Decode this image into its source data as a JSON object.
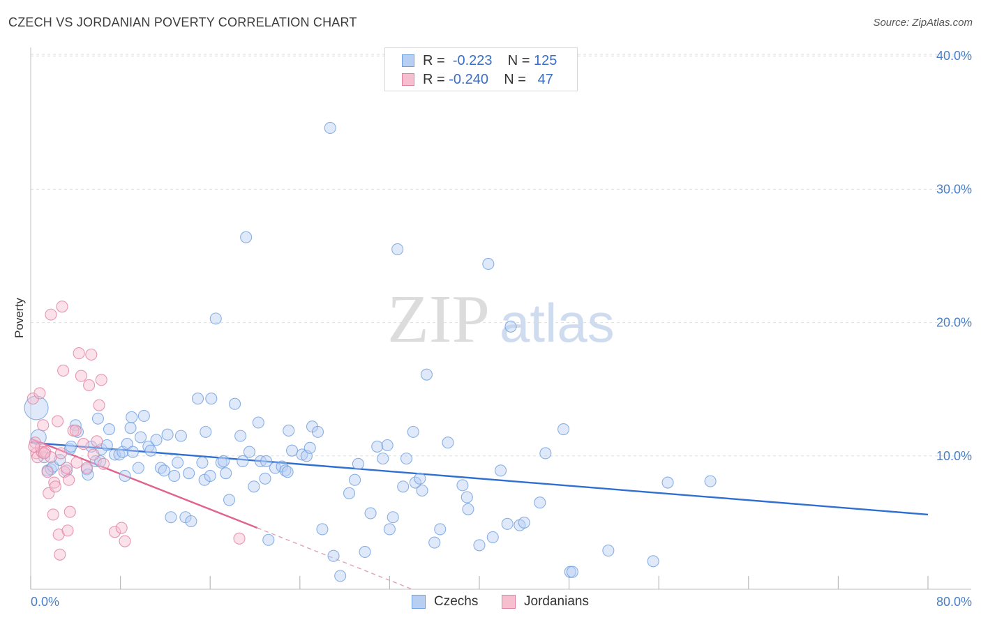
{
  "title": "CZECH VS JORDANIAN POVERTY CORRELATION CHART",
  "source": "Source: ZipAtlas.com",
  "watermark": {
    "zip": "ZIP",
    "atlas": "atlas"
  },
  "legend": {
    "rows": [
      {
        "r_label": "R =",
        "r_value": "-0.223",
        "n_label": "N =",
        "n_value": "125",
        "color": "#6e9fe0",
        "fill": "#b7cff3"
      },
      {
        "r_label": "R =",
        "r_value": "-0.240",
        "n_label": "N =",
        "n_value": " 47",
        "color": "#e07fa0",
        "fill": "#f6bfd0"
      }
    ]
  },
  "bottom_legend": [
    {
      "label": "Czechs",
      "color": "#6e9fe0",
      "fill": "#b7cff3"
    },
    {
      "label": "Jordanians",
      "color": "#e07fa0",
      "fill": "#f6bfd0"
    }
  ],
  "chart_data": {
    "type": "scatter",
    "title": "CZECH VS JORDANIAN POVERTY CORRELATION CHART",
    "xlabel": "",
    "ylabel": "Poverty",
    "xlim": [
      0,
      80
    ],
    "ylim": [
      0,
      41
    ],
    "x_tick_labels": [
      "0.0%",
      "80.0%"
    ],
    "y_ticks": [
      10,
      20,
      30,
      40
    ],
    "y_tick_labels": [
      "10.0%",
      "20.0%",
      "30.0%",
      "40.0%"
    ],
    "grid": true,
    "series": [
      {
        "name": "Czechs",
        "color": "#6e9fe0",
        "fill": "#b7cff3",
        "trend": {
          "x": [
            0,
            80
          ],
          "y": [
            11.0,
            5.6
          ]
        },
        "points": [
          [
            0.5,
            13.6
          ],
          [
            0.7,
            11.4
          ],
          [
            1.2,
            9.9
          ],
          [
            1.5,
            8.9
          ],
          [
            1.8,
            9.0
          ],
          [
            2.0,
            9.2
          ],
          [
            2.6,
            9.7
          ],
          [
            3.2,
            8.9
          ],
          [
            3.5,
            10.5
          ],
          [
            3.6,
            10.7
          ],
          [
            4.0,
            12.3
          ],
          [
            4.2,
            11.8
          ],
          [
            5.0,
            9.0
          ],
          [
            5.1,
            8.6
          ],
          [
            5.4,
            10.7
          ],
          [
            5.8,
            9.6
          ],
          [
            6.2,
            9.6
          ],
          [
            6.3,
            10.5
          ],
          [
            6.8,
            10.8
          ],
          [
            7.0,
            12.0
          ],
          [
            7.5,
            10.1
          ],
          [
            7.9,
            10.1
          ],
          [
            8.2,
            10.3
          ],
          [
            8.4,
            8.5
          ],
          [
            8.6,
            10.9
          ],
          [
            8.9,
            12.1
          ],
          [
            9.0,
            12.9
          ],
          [
            9.6,
            9.1
          ],
          [
            9.8,
            11.4
          ],
          [
            10.1,
            13.0
          ],
          [
            10.5,
            10.7
          ],
          [
            10.7,
            10.4
          ],
          [
            11.2,
            11.2
          ],
          [
            11.6,
            9.1
          ],
          [
            11.9,
            8.9
          ],
          [
            12.2,
            11.6
          ],
          [
            12.5,
            5.4
          ],
          [
            12.8,
            8.5
          ],
          [
            13.1,
            9.5
          ],
          [
            13.4,
            11.5
          ],
          [
            13.8,
            5.4
          ],
          [
            14.1,
            8.7
          ],
          [
            14.3,
            5.1
          ],
          [
            14.9,
            14.3
          ],
          [
            15.3,
            9.5
          ],
          [
            15.5,
            8.2
          ],
          [
            15.6,
            11.8
          ],
          [
            16.0,
            8.5
          ],
          [
            16.1,
            14.3
          ],
          [
            16.5,
            20.3
          ],
          [
            17.0,
            9.5
          ],
          [
            17.4,
            8.7
          ],
          [
            17.7,
            6.7
          ],
          [
            18.2,
            13.9
          ],
          [
            18.7,
            11.5
          ],
          [
            18.9,
            9.6
          ],
          [
            19.2,
            26.4
          ],
          [
            19.5,
            10.3
          ],
          [
            19.9,
            7.7
          ],
          [
            20.3,
            12.5
          ],
          [
            20.5,
            9.6
          ],
          [
            20.9,
            8.3
          ],
          [
            21.2,
            3.7
          ],
          [
            21.8,
            9.1
          ],
          [
            22.4,
            9.2
          ],
          [
            22.7,
            8.9
          ],
          [
            22.9,
            8.8
          ],
          [
            23.0,
            11.9
          ],
          [
            23.3,
            10.4
          ],
          [
            24.2,
            10.1
          ],
          [
            24.6,
            10.0
          ],
          [
            24.9,
            10.6
          ],
          [
            25.1,
            12.2
          ],
          [
            25.6,
            11.8
          ],
          [
            26.0,
            4.5
          ],
          [
            26.7,
            34.6
          ],
          [
            27.0,
            2.5
          ],
          [
            27.6,
            1.0
          ],
          [
            28.4,
            7.2
          ],
          [
            28.9,
            8.2
          ],
          [
            29.2,
            9.4
          ],
          [
            29.8,
            2.8
          ],
          [
            30.3,
            5.7
          ],
          [
            30.9,
            10.7
          ],
          [
            31.4,
            9.8
          ],
          [
            31.8,
            10.8
          ],
          [
            32.0,
            4.5
          ],
          [
            32.3,
            5.4
          ],
          [
            32.7,
            25.5
          ],
          [
            33.2,
            7.7
          ],
          [
            33.5,
            9.8
          ],
          [
            34.1,
            11.8
          ],
          [
            34.3,
            8.0
          ],
          [
            34.7,
            8.3
          ],
          [
            34.9,
            7.4
          ],
          [
            35.3,
            16.1
          ],
          [
            36.0,
            3.5
          ],
          [
            36.5,
            4.5
          ],
          [
            37.2,
            11.0
          ],
          [
            38.5,
            7.8
          ],
          [
            38.9,
            6.9
          ],
          [
            39.0,
            6.0
          ],
          [
            40.0,
            3.3
          ],
          [
            40.8,
            24.4
          ],
          [
            41.2,
            3.9
          ],
          [
            41.9,
            8.9
          ],
          [
            42.5,
            4.9
          ],
          [
            42.8,
            19.7
          ],
          [
            43.6,
            4.8
          ],
          [
            44.0,
            5.0
          ],
          [
            45.4,
            6.5
          ],
          [
            45.9,
            10.2
          ],
          [
            47.5,
            12.0
          ],
          [
            48.1,
            1.3
          ],
          [
            48.3,
            1.3
          ],
          [
            51.5,
            2.9
          ],
          [
            55.5,
            2.1
          ],
          [
            56.8,
            8.0
          ],
          [
            60.6,
            8.1
          ],
          [
            21.0,
            9.6
          ],
          [
            9.1,
            10.3
          ],
          [
            17.2,
            9.6
          ],
          [
            6.0,
            12.8
          ]
        ]
      },
      {
        "name": "Jordanians",
        "color": "#e07fa0",
        "fill": "#f6bfd0",
        "trend": {
          "x": [
            0,
            20.2
          ],
          "y": [
            11.3,
            4.6
          ]
        },
        "trend_dashed": {
          "x": [
            20.2,
            34.0
          ],
          "y": [
            4.6,
            0.0
          ]
        },
        "points": [
          [
            0.2,
            14.3
          ],
          [
            0.4,
            11.0
          ],
          [
            0.5,
            10.2
          ],
          [
            0.6,
            9.9
          ],
          [
            0.8,
            14.7
          ],
          [
            0.9,
            10.6
          ],
          [
            1.0,
            10.3
          ],
          [
            1.1,
            12.3
          ],
          [
            1.3,
            10.3
          ],
          [
            1.5,
            8.8
          ],
          [
            1.6,
            7.2
          ],
          [
            1.8,
            9.9
          ],
          [
            1.8,
            20.6
          ],
          [
            2.0,
            5.6
          ],
          [
            2.1,
            8.0
          ],
          [
            2.2,
            7.7
          ],
          [
            2.4,
            12.6
          ],
          [
            2.5,
            4.1
          ],
          [
            2.6,
            2.6
          ],
          [
            2.8,
            21.2
          ],
          [
            2.9,
            16.4
          ],
          [
            3.0,
            8.8
          ],
          [
            3.2,
            9.1
          ],
          [
            3.3,
            4.4
          ],
          [
            3.4,
            8.2
          ],
          [
            3.5,
            5.8
          ],
          [
            3.8,
            11.9
          ],
          [
            4.0,
            11.9
          ],
          [
            4.1,
            9.5
          ],
          [
            4.3,
            17.7
          ],
          [
            4.5,
            16.0
          ],
          [
            4.7,
            10.9
          ],
          [
            5.0,
            9.1
          ],
          [
            5.2,
            15.3
          ],
          [
            5.4,
            17.6
          ],
          [
            5.6,
            10.1
          ],
          [
            5.9,
            11.1
          ],
          [
            6.1,
            13.8
          ],
          [
            6.3,
            15.7
          ],
          [
            6.5,
            9.4
          ],
          [
            7.5,
            4.3
          ],
          [
            8.1,
            4.6
          ],
          [
            8.4,
            3.6
          ],
          [
            18.6,
            3.8
          ],
          [
            1.2,
            10.2
          ],
          [
            0.3,
            10.7
          ],
          [
            2.7,
            10.2
          ]
        ]
      }
    ]
  }
}
